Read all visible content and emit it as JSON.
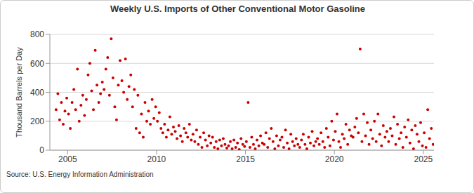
{
  "chart_data": {
    "type": "scatter",
    "title": "Weekly U.S. Imports of Other Conventional Motor Gasoline",
    "y_label": "Thousand Barrels per Day",
    "source": "Source: U.S. Energy Information Administration",
    "color": "#cc0000",
    "marker": "circle",
    "grid": true,
    "xlim": [
      2004,
      2025.6
    ],
    "xticks": [
      2005,
      2010,
      2015,
      2020,
      2025
    ],
    "ylim": [
      0,
      800
    ],
    "yticks": [
      0,
      200,
      400,
      600,
      800
    ],
    "x": [
      2004.35,
      2004.45,
      2004.55,
      2004.65,
      2004.75,
      2004.85,
      2004.95,
      2005.05,
      2005.15,
      2005.25,
      2005.35,
      2005.45,
      2005.55,
      2005.65,
      2005.75,
      2005.85,
      2005.95,
      2006.05,
      2006.15,
      2006.25,
      2006.35,
      2006.45,
      2006.55,
      2006.65,
      2006.75,
      2006.85,
      2006.95,
      2007.05,
      2007.15,
      2007.25,
      2007.35,
      2007.45,
      2007.55,
      2007.65,
      2007.75,
      2007.85,
      2007.95,
      2008.05,
      2008.15,
      2008.25,
      2008.35,
      2008.45,
      2008.55,
      2008.65,
      2008.75,
      2008.85,
      2008.95,
      2009.05,
      2009.15,
      2009.25,
      2009.35,
      2009.45,
      2009.55,
      2009.65,
      2009.75,
      2009.85,
      2009.95,
      2010.05,
      2010.15,
      2010.25,
      2010.35,
      2010.45,
      2010.55,
      2010.65,
      2010.75,
      2010.85,
      2010.95,
      2011.05,
      2011.15,
      2011.25,
      2011.35,
      2011.45,
      2011.55,
      2011.65,
      2011.75,
      2011.85,
      2011.95,
      2012.05,
      2012.15,
      2012.25,
      2012.35,
      2012.45,
      2012.55,
      2012.65,
      2012.75,
      2012.85,
      2012.95,
      2013.05,
      2013.15,
      2013.25,
      2013.35,
      2013.45,
      2013.55,
      2013.65,
      2013.75,
      2013.85,
      2013.95,
      2014.05,
      2014.15,
      2014.25,
      2014.35,
      2014.45,
      2014.55,
      2014.65,
      2014.75,
      2014.85,
      2014.95,
      2015.05,
      2015.15,
      2015.25,
      2015.35,
      2015.45,
      2015.55,
      2015.65,
      2015.75,
      2015.85,
      2015.95,
      2016.05,
      2016.15,
      2016.25,
      2016.35,
      2016.45,
      2016.55,
      2016.65,
      2016.75,
      2016.85,
      2016.95,
      2017.05,
      2017.15,
      2017.25,
      2017.35,
      2017.45,
      2017.55,
      2017.65,
      2017.75,
      2017.85,
      2017.95,
      2018.05,
      2018.15,
      2018.25,
      2018.35,
      2018.45,
      2018.55,
      2018.65,
      2018.75,
      2018.85,
      2018.95,
      2019.05,
      2019.15,
      2019.25,
      2019.35,
      2019.45,
      2019.55,
      2019.65,
      2019.75,
      2019.85,
      2019.95,
      2020.05,
      2020.15,
      2020.25,
      2020.35,
      2020.45,
      2020.55,
      2020.65,
      2020.75,
      2020.85,
      2020.95,
      2021.05,
      2021.15,
      2021.25,
      2021.35,
      2021.45,
      2021.55,
      2021.65,
      2021.75,
      2021.85,
      2021.95,
      2022.05,
      2022.15,
      2022.25,
      2022.35,
      2022.45,
      2022.55,
      2022.65,
      2022.75,
      2022.85,
      2022.95,
      2023.05,
      2023.15,
      2023.25,
      2023.35,
      2023.45,
      2023.55,
      2023.65,
      2023.75,
      2023.85,
      2023.95,
      2024.05,
      2024.15,
      2024.25,
      2024.35,
      2024.45,
      2024.55,
      2024.65,
      2024.75,
      2024.85,
      2024.95,
      2025.05,
      2025.15,
      2025.25,
      2025.35,
      2025.45,
      2025.55
    ],
    "values": [
      280,
      390,
      210,
      330,
      180,
      270,
      360,
      250,
      150,
      330,
      420,
      280,
      560,
      200,
      310,
      380,
      240,
      350,
      520,
      600,
      410,
      280,
      690,
      450,
      330,
      390,
      470,
      420,
      560,
      640,
      380,
      770,
      500,
      300,
      210,
      450,
      620,
      480,
      400,
      630,
      350,
      440,
      520,
      300,
      420,
      150,
      380,
      120,
      250,
      90,
      330,
      200,
      270,
      180,
      350,
      220,
      300,
      200,
      260,
      150,
      120,
      180,
      90,
      140,
      230,
      110,
      160,
      130,
      80,
      170,
      100,
      60,
      150,
      120,
      90,
      180,
      70,
      110,
      60,
      140,
      40,
      90,
      20,
      120,
      70,
      30,
      100,
      50,
      90,
      20,
      60,
      10,
      70,
      30,
      80,
      40,
      15,
      30,
      60,
      10,
      70,
      20,
      50,
      5,
      80,
      40,
      25,
      60,
      330,
      20,
      90,
      40,
      10,
      70,
      30,
      100,
      50,
      40,
      120,
      20,
      80,
      150,
      60,
      10,
      100,
      30,
      70,
      90,
      20,
      140,
      50,
      10,
      110,
      60,
      30,
      80,
      40,
      20,
      70,
      110,
      40,
      10,
      90,
      50,
      130,
      30,
      60,
      80,
      40,
      120,
      60,
      20,
      150,
      90,
      30,
      200,
      70,
      130,
      250,
      60,
      20,
      110,
      80,
      180,
      40,
      140,
      100,
      90,
      160,
      220,
      120,
      700,
      60,
      250,
      100,
      190,
      40,
      140,
      80,
      200,
      60,
      250,
      110,
      30,
      170,
      90,
      130,
      60,
      150,
      100,
      230,
      40,
      180,
      80,
      120,
      20,
      160,
      90,
      210,
      50,
      140,
      10,
      170,
      110,
      60,
      190,
      30,
      120,
      20,
      280,
      80,
      150,
      40
    ]
  }
}
